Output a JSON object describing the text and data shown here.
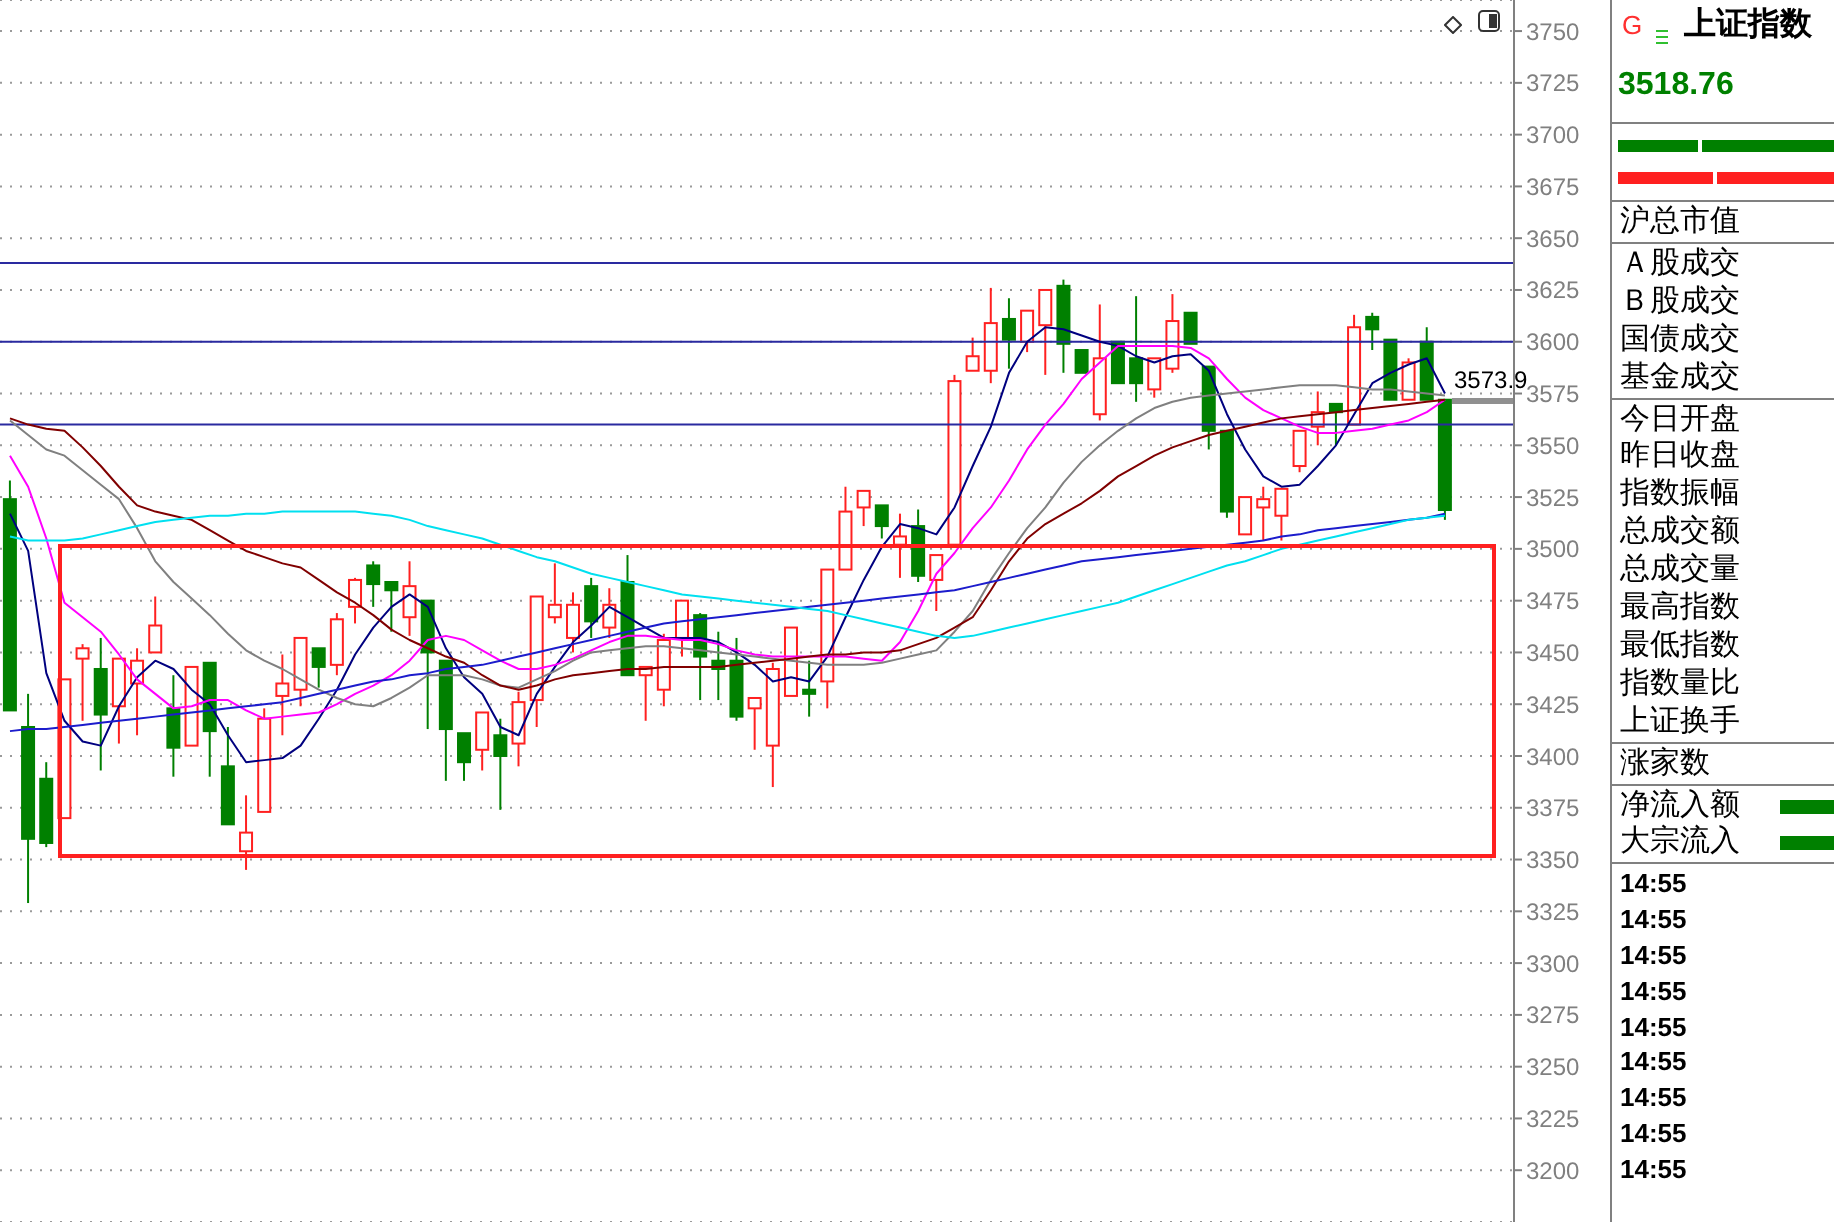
{
  "chart_data": {
    "type": "candlestick",
    "title": "上证指数",
    "subtitle": "3518.76",
    "categories": [
      null,
      null,
      null,
      null,
      null,
      null,
      null,
      null,
      null,
      null,
      null,
      null,
      null,
      null,
      null,
      null,
      null,
      null,
      null,
      null,
      null,
      null,
      null,
      null,
      null,
      null,
      null,
      null,
      null,
      null,
      null,
      null,
      null,
      null,
      null,
      null,
      null,
      null,
      null,
      null,
      null,
      null,
      null,
      null,
      null,
      null,
      null,
      null,
      null,
      null,
      null,
      null,
      null,
      null,
      null,
      null,
      null,
      null,
      null,
      null,
      null,
      null,
      null,
      null,
      null,
      null,
      null,
      null,
      null,
      null,
      null,
      null,
      null,
      null,
      null,
      null,
      null,
      null,
      null,
      null
    ],
    "ohlc": [
      [
        3524,
        3533,
        3422,
        3422
      ],
      [
        3414,
        3430,
        3329,
        3360
      ],
      [
        3389,
        3397,
        3356,
        3358
      ],
      [
        3370,
        3437,
        3370,
        3437
      ],
      [
        3447,
        3454,
        3417,
        3452
      ],
      [
        3442,
        3457,
        3393,
        3420
      ],
      [
        3424,
        3447,
        3406,
        3447
      ],
      [
        3435,
        3452,
        3410,
        3446
      ],
      [
        3450,
        3477,
        3450,
        3463
      ],
      [
        3423,
        3439,
        3390,
        3404
      ],
      [
        3405,
        3443,
        3405,
        3443
      ],
      [
        3445,
        3445,
        3390,
        3412
      ],
      [
        3395,
        3414,
        3367,
        3367
      ],
      [
        3354,
        3381,
        3345,
        3363
      ],
      [
        3373,
        3423,
        3373,
        3418
      ],
      [
        3429,
        3449,
        3410,
        3435
      ],
      [
        3432,
        3457,
        3424,
        3457
      ],
      [
        3452,
        3452,
        3433,
        3443
      ],
      [
        3444,
        3469,
        3439,
        3466
      ],
      [
        3472,
        3486,
        3464,
        3485
      ],
      [
        3492,
        3494,
        3472,
        3483
      ],
      [
        3484,
        3484,
        3460,
        3480
      ],
      [
        3467,
        3494,
        3458,
        3482
      ],
      [
        3475,
        3475,
        3413,
        3450
      ],
      [
        3446,
        3446,
        3388,
        3413
      ],
      [
        3411,
        3411,
        3388,
        3397
      ],
      [
        3403,
        3421,
        3393,
        3421
      ],
      [
        3410,
        3418,
        3374,
        3400
      ],
      [
        3406,
        3431,
        3395,
        3426
      ],
      [
        3427,
        3477,
        3414,
        3477
      ],
      [
        3467,
        3493,
        3464,
        3473
      ],
      [
        3457,
        3479,
        3450,
        3473
      ],
      [
        3482,
        3486,
        3457,
        3465
      ],
      [
        3462,
        3481,
        3457,
        3473
      ],
      [
        3484,
        3497,
        3439,
        3439
      ],
      [
        3439,
        3443,
        3417,
        3443
      ],
      [
        3432,
        3459,
        3424,
        3456
      ],
      [
        3457,
        3475,
        3448,
        3475
      ],
      [
        3468,
        3469,
        3427,
        3448
      ],
      [
        3446,
        3460,
        3427,
        3442
      ],
      [
        3446,
        3457,
        3417,
        3419
      ],
      [
        3423,
        3428,
        3403,
        3428
      ],
      [
        3405,
        3445,
        3385,
        3442
      ],
      [
        3429,
        3462,
        3429,
        3462
      ],
      [
        3432,
        3446,
        3419,
        3430
      ],
      [
        3436,
        3490,
        3423,
        3490
      ],
      [
        3490,
        3530,
        3490,
        3518
      ],
      [
        3520,
        3528,
        3511,
        3528
      ],
      [
        3521,
        3521,
        3505,
        3511
      ],
      [
        3502,
        3517,
        3486,
        3506
      ],
      [
        3511,
        3519,
        3484,
        3487
      ],
      [
        3485,
        3497,
        3470,
        3497
      ],
      [
        3502,
        3584,
        3502,
        3581
      ],
      [
        3586,
        3602,
        3586,
        3593
      ],
      [
        3586,
        3626,
        3580,
        3609
      ],
      [
        3611,
        3621,
        3587,
        3601
      ],
      [
        3600,
        3615,
        3595,
        3615
      ],
      [
        3608,
        3625,
        3584,
        3625
      ],
      [
        3627,
        3630,
        3585,
        3599
      ],
      [
        3596,
        3596,
        3585,
        3585
      ],
      [
        3565,
        3618,
        3562,
        3592
      ],
      [
        3600,
        3600,
        3580,
        3580
      ],
      [
        3592,
        3622,
        3571,
        3580
      ],
      [
        3577,
        3592,
        3573,
        3592
      ],
      [
        3587,
        3623,
        3585,
        3610
      ],
      [
        3614,
        3614,
        3599,
        3599
      ],
      [
        3588,
        3588,
        3548,
        3557
      ],
      [
        3557,
        3557,
        3515,
        3518
      ],
      [
        3507,
        3525,
        3507,
        3525
      ],
      [
        3520,
        3530,
        3504,
        3524
      ],
      [
        3516,
        3529,
        3504,
        3529
      ],
      [
        3540,
        3557,
        3537,
        3557
      ],
      [
        3559,
        3576,
        3550,
        3566
      ],
      [
        3570,
        3570,
        3550,
        3566
      ],
      [
        3560,
        3613,
        3560,
        3607
      ],
      [
        3612,
        3614,
        3596,
        3606
      ],
      [
        3601,
        3601,
        3572,
        3572
      ],
      [
        3572,
        3592,
        3572,
        3590
      ],
      [
        3600,
        3607,
        3572,
        3572
      ],
      [
        3572,
        3572,
        3514,
        3518.76
      ]
    ],
    "colors": [
      "#008000",
      "#008000",
      "#008000",
      "#ff2020",
      "#ff2020",
      "#008000",
      "#ff2020",
      "#ff2020",
      "#ff2020",
      "#008000",
      "#ff2020",
      "#008000",
      "#008000",
      "#ff2020",
      "#ff2020",
      "#ff2020",
      "#ff2020",
      "#008000",
      "#ff2020",
      "#ff2020",
      "#008000",
      "#008000",
      "#ff2020",
      "#008000",
      "#008000",
      "#008000",
      "#ff2020",
      "#008000",
      "#ff2020",
      "#ff2020",
      "#ff2020",
      "#ff2020",
      "#008000",
      "#ff2020",
      "#008000",
      "#ff2020",
      "#ff2020",
      "#ff2020",
      "#008000",
      "#008000",
      "#008000",
      "#ff2020",
      "#ff2020",
      "#ff2020",
      "#008000",
      "#ff2020",
      "#ff2020",
      "#ff2020",
      "#008000",
      "#ff2020",
      "#008000",
      "#ff2020",
      "#ff2020",
      "#ff2020",
      "#ff2020",
      "#008000",
      "#ff2020",
      "#ff2020",
      "#008000",
      "#008000",
      "#ff2020",
      "#008000",
      "#008000",
      "#ff2020",
      "#ff2020",
      "#008000",
      "#008000",
      "#008000",
      "#ff2020",
      "#ff2020",
      "#ff2020",
      "#ff2020",
      "#ff2020",
      "#008000",
      "#ff2020",
      "#008000",
      "#008000",
      "#ff2020",
      "#008000",
      "#008000"
    ],
    "series": [
      {
        "type": "line",
        "color": "#00007f",
        "values": [
          3517,
          3499,
          3440,
          3417,
          3407,
          3405,
          3424,
          3438,
          3446,
          3442,
          3432,
          3425,
          3410,
          3397,
          3398,
          3399,
          3405,
          3418,
          3432,
          3449,
          3462,
          3472,
          3478,
          3472,
          3452,
          3438,
          3430,
          3414,
          3410,
          3430,
          3443,
          3455,
          3463,
          3472,
          3467,
          3462,
          3457,
          3457,
          3457,
          3455,
          3450,
          3444,
          3436,
          3438,
          3436,
          3448,
          3467,
          3485,
          3501,
          3512,
          3510,
          3507,
          3520,
          3540,
          3559,
          3585,
          3600,
          3607,
          3606,
          3603,
          3600,
          3598,
          3593,
          3590,
          3593,
          3594,
          3586,
          3565,
          3548,
          3535,
          3530,
          3531,
          3540,
          3550,
          3565,
          3580,
          3585,
          3589,
          3592,
          3575
        ]
      },
      {
        "type": "line",
        "color": "#ff00ff",
        "values": [
          3545,
          3530,
          3505,
          3474,
          3467,
          3460,
          3449,
          3437,
          3430,
          3423,
          3424,
          3427,
          3427,
          3422,
          3418,
          3419,
          3420,
          3421,
          3425,
          3430,
          3434,
          3439,
          3446,
          3456,
          3458,
          3456,
          3451,
          3446,
          3442,
          3442,
          3444,
          3447,
          3451,
          3455,
          3458,
          3458,
          3457,
          3456,
          3456,
          3454,
          3451,
          3449,
          3448,
          3448,
          3448,
          3448,
          3448,
          3447,
          3446,
          3455,
          3470,
          3488,
          3498,
          3510,
          3520,
          3533,
          3548,
          3560,
          3570,
          3582,
          3590,
          3598,
          3598,
          3598,
          3598,
          3597,
          3592,
          3582,
          3573,
          3567,
          3563,
          3559,
          3556,
          3556,
          3557,
          3558,
          3560,
          3562,
          3566,
          3572
        ]
      },
      {
        "type": "line",
        "color": "#808080",
        "values": [
          3562,
          3555,
          3548,
          3545,
          3538,
          3531,
          3524,
          3510,
          3494,
          3484,
          3476,
          3468,
          3459,
          3451,
          3446,
          3442,
          3437,
          3432,
          3428,
          3425,
          3424,
          3428,
          3433,
          3439,
          3439,
          3439,
          3437,
          3434,
          3433,
          3437,
          3441,
          3446,
          3450,
          3451,
          3452,
          3453,
          3453,
          3452,
          3451,
          3450,
          3449,
          3448,
          3447,
          3446,
          3445,
          3444,
          3444,
          3444,
          3445,
          3447,
          3449,
          3451,
          3460,
          3470,
          3485,
          3498,
          3510,
          3520,
          3532,
          3542,
          3550,
          3557,
          3563,
          3568,
          3571,
          3573,
          3574,
          3575,
          3576,
          3577,
          3578,
          3579,
          3579,
          3579,
          3578,
          3577,
          3577,
          3576,
          3575,
          3574
        ]
      },
      {
        "type": "line",
        "color": "#800000",
        "values": [
          3563,
          3560,
          3558,
          3557,
          3549,
          3540,
          3530,
          3521,
          3518,
          3516,
          3514,
          3509,
          3504,
          3499,
          3496,
          3493,
          3491,
          3485,
          3479,
          3474,
          3468,
          3461,
          3456,
          3452,
          3448,
          3445,
          3439,
          3434,
          3432,
          3434,
          3437,
          3439,
          3440,
          3441,
          3442,
          3442,
          3443,
          3443,
          3443,
          3443,
          3444,
          3445,
          3446,
          3447,
          3448,
          3449,
          3449,
          3450,
          3450,
          3451,
          3454,
          3457,
          3462,
          3467,
          3480,
          3494,
          3505,
          3512,
          3517,
          3522,
          3528,
          3535,
          3540,
          3545,
          3549,
          3552,
          3555,
          3557,
          3559,
          3561,
          3563,
          3564,
          3565,
          3566,
          3567,
          3568,
          3569,
          3570,
          3571,
          3572
        ]
      },
      {
        "type": "line",
        "color": "#1c1ccc",
        "values": [
          3412,
          3413,
          3413,
          3414,
          3415,
          3416,
          3417,
          3418,
          3419,
          3420,
          3421,
          3422,
          3423,
          3424,
          3425,
          3426,
          3428,
          3430,
          3432,
          3434,
          3436,
          3437,
          3439,
          3440,
          3442,
          3443,
          3444,
          3446,
          3448,
          3450,
          3452,
          3454,
          3456,
          3458,
          3460,
          3462,
          3464,
          3465,
          3466,
          3467,
          3468,
          3469,
          3470,
          3471,
          3472,
          3473,
          3474,
          3475,
          3476,
          3477,
          3478,
          3479,
          3480,
          3482,
          3484,
          3486,
          3488,
          3490,
          3492,
          3494,
          3495,
          3496,
          3497,
          3498,
          3499,
          3500,
          3501,
          3502,
          3503,
          3504,
          3506,
          3507,
          3509,
          3510,
          3511,
          3512,
          3513,
          3514,
          3515,
          3517
        ]
      },
      {
        "type": "line",
        "color": "#00e0f0",
        "values": [
          3506,
          3504,
          3504,
          3504,
          3505,
          3507,
          3509,
          3511,
          3513,
          3514,
          3515,
          3516,
          3516,
          3517,
          3517,
          3518,
          3518,
          3518,
          3518,
          3518,
          3517,
          3516,
          3514,
          3511,
          3509,
          3507,
          3505,
          3502,
          3499,
          3496,
          3494,
          3491,
          3488,
          3486,
          3484,
          3482,
          3480,
          3478,
          3477,
          3476,
          3475,
          3474,
          3473,
          3472,
          3471,
          3470,
          3468,
          3466,
          3464,
          3462,
          3460,
          3458,
          3457,
          3458,
          3460,
          3462,
          3464,
          3466,
          3468,
          3470,
          3472,
          3474,
          3477,
          3480,
          3483,
          3486,
          3489,
          3492,
          3494,
          3497,
          3500,
          3502,
          3504,
          3506,
          3508,
          3510,
          3512,
          3514,
          3515,
          3516
        ]
      }
    ],
    "ylim": [
      3175,
      3765
    ],
    "yticks": [
      3200,
      3225,
      3250,
      3275,
      3300,
      3325,
      3350,
      3375,
      3400,
      3425,
      3450,
      3475,
      3500,
      3525,
      3550,
      3575,
      3600,
      3625,
      3650,
      3675,
      3700,
      3725,
      3750
    ],
    "grid": "y",
    "ref_lines": [
      {
        "axis": "y",
        "value": 3638,
        "color": "#2a2aa0"
      },
      {
        "axis": "y",
        "value": 3600,
        "color": "#2a2aa0"
      },
      {
        "axis": "y",
        "value": 3560,
        "color": "#2a2aa0"
      }
    ],
    "annotations": [
      "3573.9",
      "G",
      "沪总市值",
      "Ａ股成交",
      "Ｂ股成交",
      "国债成交",
      "基金成交",
      "今日开盘",
      "昨日收盘",
      "指数振幅",
      "总成交额",
      "总成交量",
      "最高指数",
      "最低指数",
      "指数量比",
      "上证换手",
      "涨家数",
      "净流入额",
      "大宗流入",
      "14:55",
      "14:55",
      "14:55",
      "14:55",
      "14:55",
      "14:55",
      "14:55",
      "14:55",
      "14:55"
    ]
  }
}
